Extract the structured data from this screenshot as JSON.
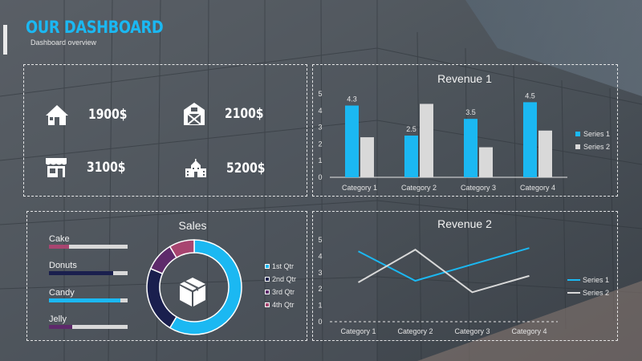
{
  "header": {
    "title": "OUR DASHBOARD",
    "subtitle": "Dashboard overview"
  },
  "colors": {
    "accent": "#1bb8f2",
    "light": "#d9d9d9",
    "navy": "#1a1f4e",
    "purple": "#5e2a6b",
    "pink": "#a84570"
  },
  "kpis": [
    {
      "icon": "house-icon",
      "value": "1900$"
    },
    {
      "icon": "barn-icon",
      "value": "2100$"
    },
    {
      "icon": "store-icon",
      "value": "3100$"
    },
    {
      "icon": "school-icon",
      "value": "5200$"
    }
  ],
  "sales": {
    "title": "Sales",
    "bars": [
      {
        "label": "Cake",
        "value": 0.25,
        "color": "#a84570"
      },
      {
        "label": "Donuts",
        "value": 0.82,
        "color": "#1a1f4e"
      },
      {
        "label": "Candy",
        "value": 0.91,
        "color": "#1bb8f2"
      },
      {
        "label": "Jelly",
        "value": 0.3,
        "color": "#5e2a6b"
      }
    ]
  },
  "chart_data": [
    {
      "type": "bar",
      "title": "Revenue 1",
      "categories": [
        "Category 1",
        "Category 2",
        "Category 3",
        "Category 4"
      ],
      "series": [
        {
          "name": "Series 1",
          "values": [
            4.3,
            2.5,
            3.5,
            4.5
          ],
          "color": "#1bb8f2",
          "labels": [
            "4.3",
            "2.5",
            "3.5",
            "4.5"
          ]
        },
        {
          "name": "Series 2",
          "values": [
            2.4,
            4.4,
            1.8,
            2.8
          ],
          "color": "#d9d9d9"
        }
      ],
      "ylim": [
        0,
        5
      ],
      "yticks": [
        "0",
        "1",
        "2",
        "3",
        "4",
        "5"
      ],
      "legend": "right"
    },
    {
      "type": "line",
      "title": "Revenue 2",
      "categories": [
        "Category 1",
        "Category 2",
        "Category 3",
        "Category 4"
      ],
      "series": [
        {
          "name": "Series 1",
          "values": [
            4.3,
            2.5,
            3.5,
            4.5
          ],
          "color": "#1bb8f2"
        },
        {
          "name": "Series 2",
          "values": [
            2.4,
            4.4,
            1.8,
            2.8
          ],
          "color": "#d9d9d9"
        }
      ],
      "ylim": [
        0,
        5
      ],
      "yticks": [
        "0",
        "1",
        "2",
        "3",
        "4",
        "5"
      ],
      "legend": "right"
    },
    {
      "type": "pie",
      "categories": [
        "1st Qtr",
        "2nd Qtr",
        "3rd Qtr",
        "4th Qtr"
      ],
      "values": [
        8.2,
        3.2,
        1.4,
        1.2
      ],
      "colors": [
        "#1bb8f2",
        "#1a1f4e",
        "#5e2a6b",
        "#a84570"
      ],
      "center_icon": "box-icon",
      "legend": "right"
    }
  ]
}
